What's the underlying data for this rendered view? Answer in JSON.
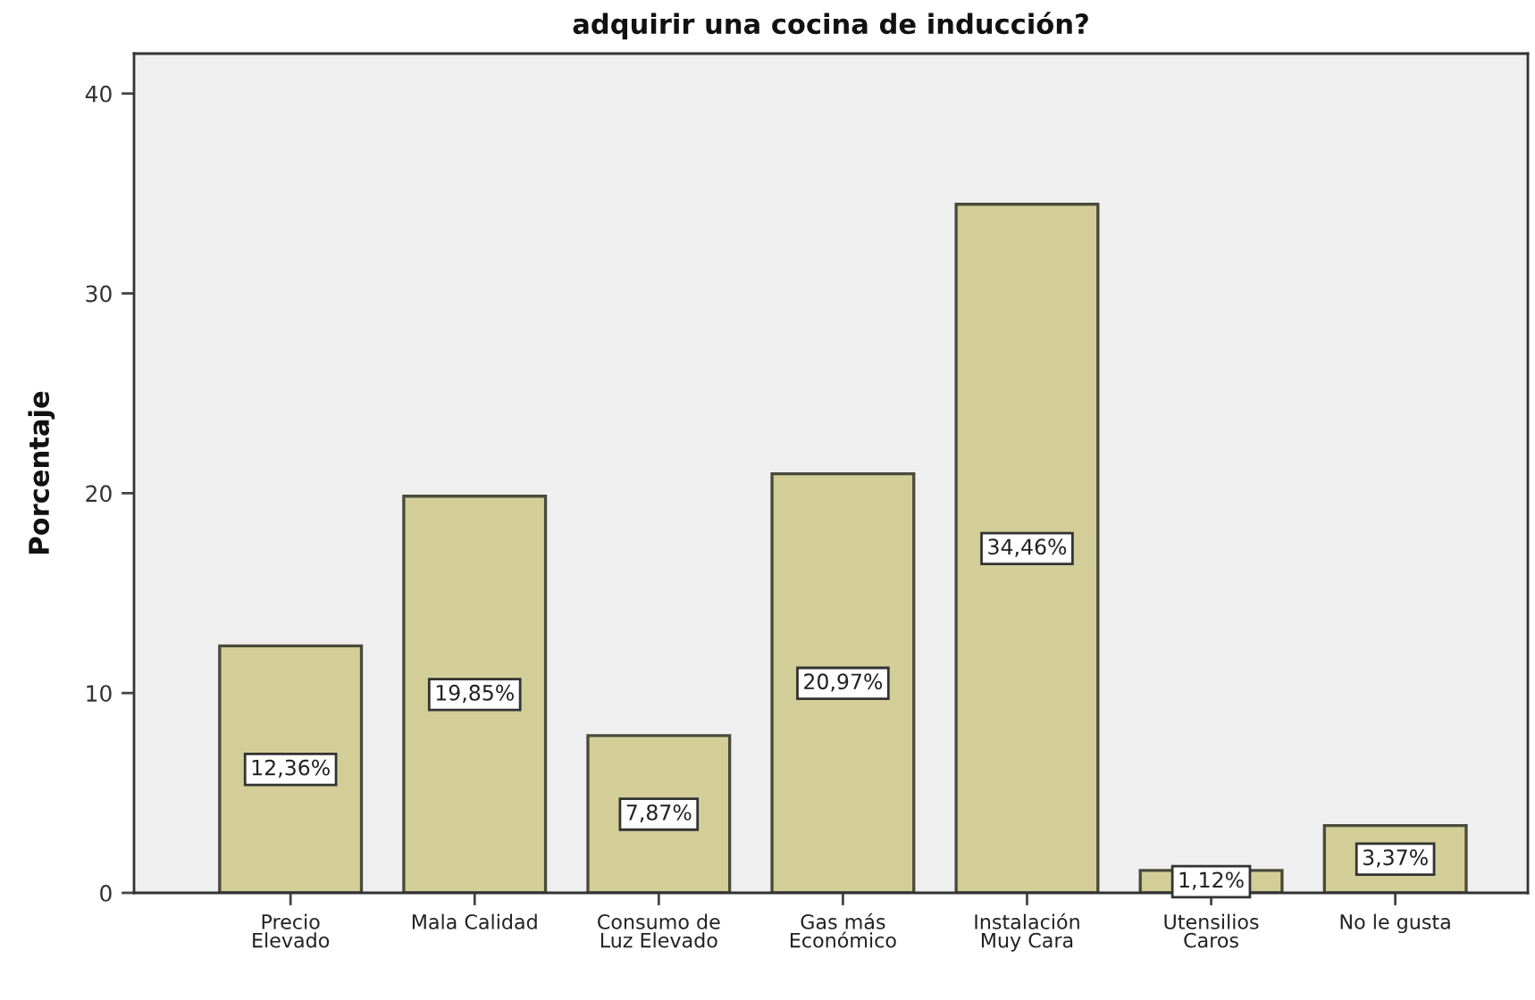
{
  "chart_data": {
    "type": "bar",
    "title": "adquirir una cocina de inducción?",
    "ylabel": "Porcentaje",
    "categories": [
      "Precio\nElevado",
      "Mala Calidad",
      "Consumo de\nLuz Elevado",
      "Gas más\nEconómico",
      "Instalación\nMuy Cara",
      "Utensilios\nCaros",
      "No le gusta"
    ],
    "values": [
      12.36,
      19.85,
      7.87,
      20.97,
      34.46,
      1.12,
      3.37
    ],
    "value_labels": [
      "12,36%",
      "19,85%",
      "7,87%",
      "20,97%",
      "34,46%",
      "1,12%",
      "3,37%"
    ],
    "color": "#d3ce98",
    "ylim": [
      0,
      42
    ],
    "yticks": [
      0,
      10,
      20,
      30,
      40
    ]
  }
}
